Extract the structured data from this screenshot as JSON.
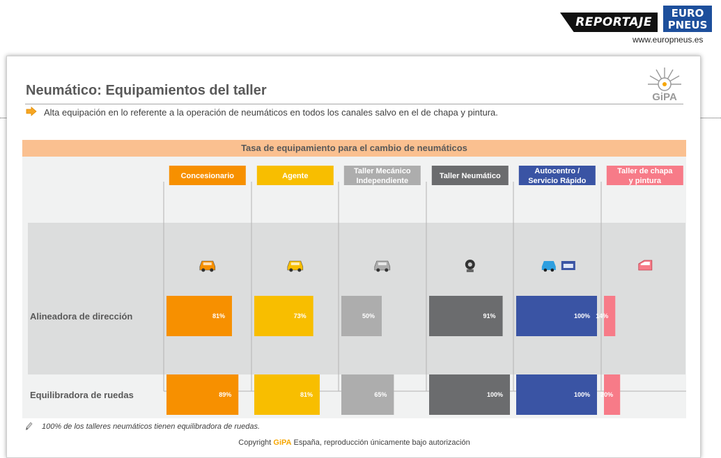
{
  "brand": {
    "reportaje": "REPORTAJE",
    "logo_line1": "EURO",
    "logo_line2": "PNEUS",
    "url": "www.europneus.es",
    "logo_color": "#1d4f9c"
  },
  "slide": {
    "title": "Neumático: Equipamientos del taller",
    "subtitle": "Alta equipación en lo referente a la operación de neumáticos en todos los canales salvo en el de chapa y pintura.",
    "gipa_logo_text": "GiPA",
    "footnote": "100% de los talleres neumáticos tienen equilibradora de ruedas.",
    "copyright_prefix": "Copyright ",
    "copyright_brand": "GiPA",
    "copyright_suffix": " España, reproducción únicamente bajo autorización"
  },
  "chart_data": {
    "type": "bar",
    "title": "Tasa de equipamiento para el cambio de neumáticos",
    "unit": "%",
    "ylim": [
      0,
      100
    ],
    "categories": [
      "Alineadora de dirección",
      "Equilibradora de ruedas"
    ],
    "series": [
      {
        "name": "Concesionario",
        "color": "#f79000",
        "icon": "car-icon",
        "values": [
          81,
          89
        ],
        "labels": [
          "81%",
          "89%"
        ]
      },
      {
        "name": "Agente",
        "color": "#f8be00",
        "icon": "car-icon",
        "values": [
          73,
          81
        ],
        "labels": [
          "73%",
          "81%"
        ]
      },
      {
        "name": "Taller Mecánico Independiente",
        "color": "#adadad",
        "icon": "car-icon",
        "values": [
          50,
          65
        ],
        "labels": [
          "50%",
          "65%"
        ]
      },
      {
        "name": "Taller Neumático",
        "color": "#6b6c6e",
        "icon": "tire-icon",
        "values": [
          91,
          100
        ],
        "labels": [
          "91%",
          "100%"
        ]
      },
      {
        "name": "Autocentro / Servicio Rápido",
        "color": "#3a54a4",
        "icon": "service-icon",
        "values": [
          100,
          100
        ],
        "labels": [
          "100%",
          "100%"
        ]
      },
      {
        "name": "Taller de chapa y pintura",
        "color": "#f77b88",
        "icon": "car-door-icon",
        "values": [
          14,
          20
        ],
        "labels": [
          "14%",
          "20%"
        ]
      }
    ]
  }
}
